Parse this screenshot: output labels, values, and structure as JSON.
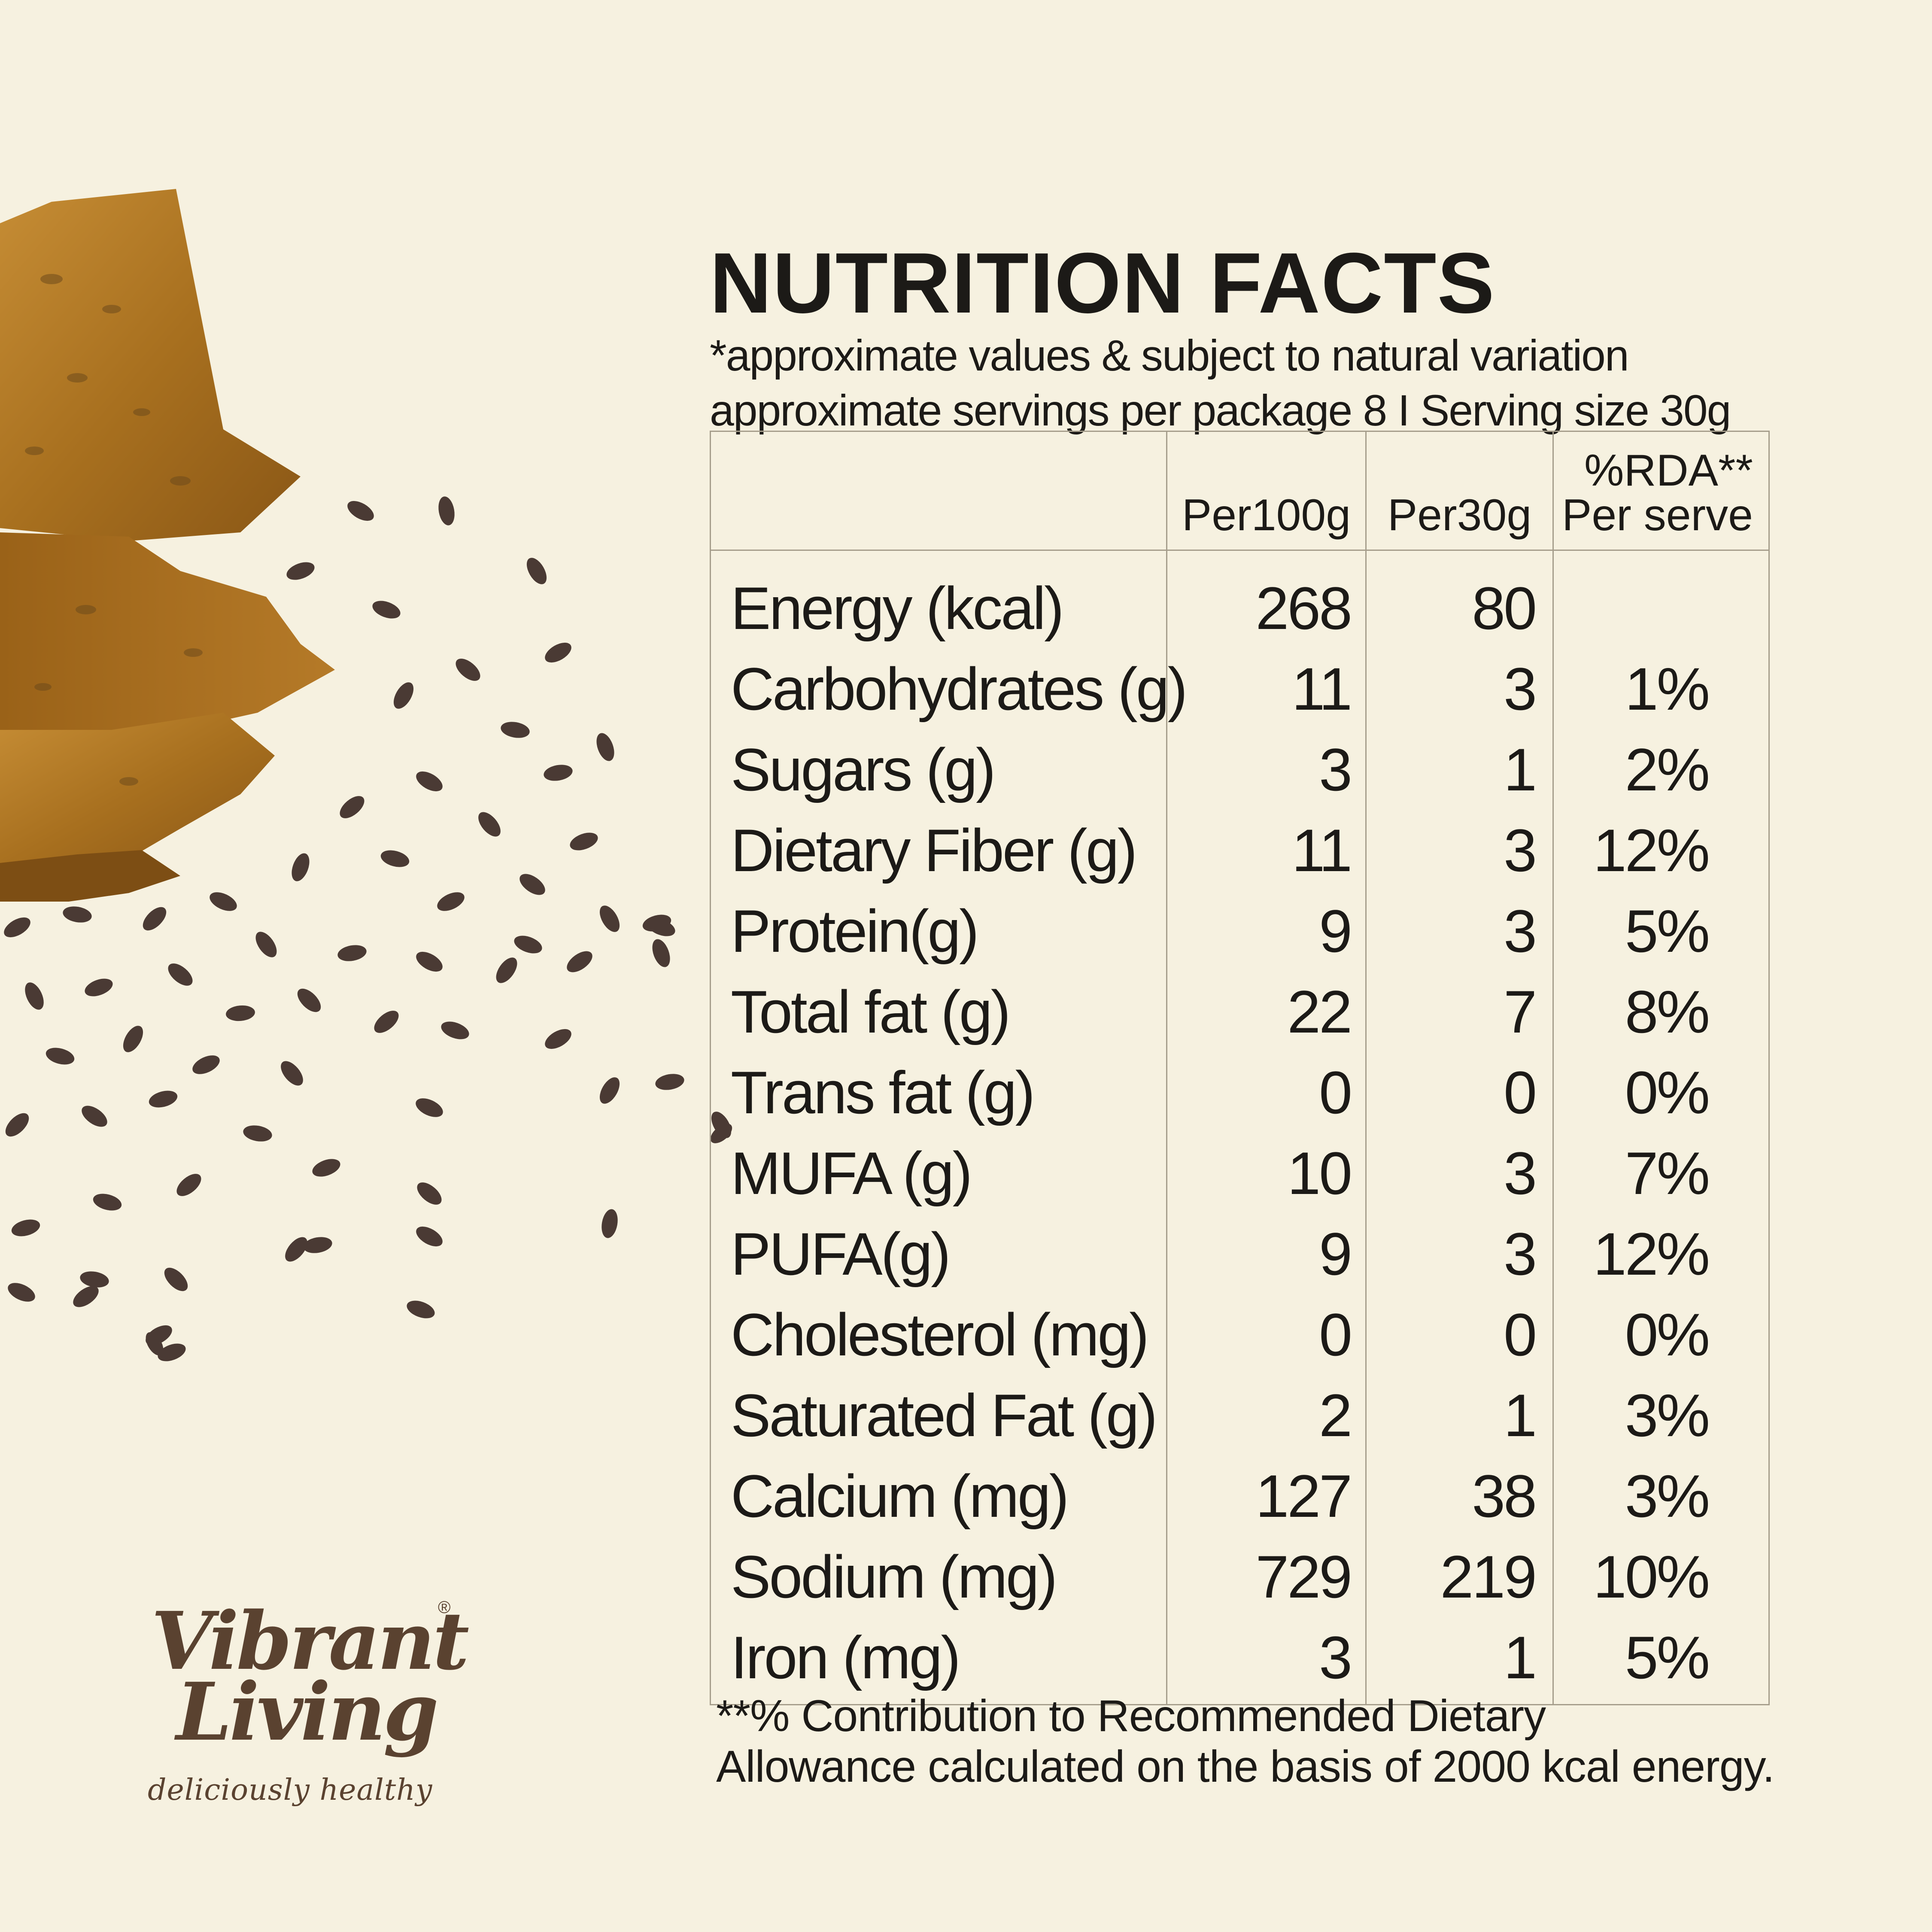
{
  "title": "NUTRITION FACTS",
  "subtitle_1": "*approximate values & subject to natural variation",
  "subtitle_2": "approximate servings per package 8 I Serving size 30g",
  "columns": {
    "per100g": "Per100g",
    "per30g": "Per30g",
    "rda_line1": "%RDA**",
    "rda_line2": "Per serve"
  },
  "rows": [
    {
      "label": "Energy (kcal)",
      "per100g": "268",
      "per30g": "80",
      "rda": ""
    },
    {
      "label": "Carbohydrates (g)",
      "per100g": "11",
      "per30g": "3",
      "rda": "1%"
    },
    {
      "label": "Sugars (g)",
      "per100g": "3",
      "per30g": "1",
      "rda": "2%"
    },
    {
      "label": "Dietary Fiber (g)",
      "per100g": "11",
      "per30g": "3",
      "rda": "12%"
    },
    {
      "label": "Protein(g)",
      "per100g": "9",
      "per30g": "3",
      "rda": "5%"
    },
    {
      "label": "Total fat (g)",
      "per100g": "22",
      "per30g": "7",
      "rda": "8%"
    },
    {
      "label": "Trans fat (g)",
      "per100g": "0",
      "per30g": "0",
      "rda": "0%"
    },
    {
      "label": "MUFA (g)",
      "per100g": "10",
      "per30g": "3",
      "rda": "7%"
    },
    {
      "label": "PUFA(g)",
      "per100g": "9",
      "per30g": "3",
      "rda": "12%"
    },
    {
      "label": "Cholesterol (mg)",
      "per100g": "0",
      "per30g": "0",
      "rda": "0%"
    },
    {
      "label": "Saturated Fat (g)",
      "per100g": "2",
      "per30g": "1",
      "rda": "3%"
    },
    {
      "label": "Calcium (mg)",
      "per100g": "127",
      "per30g": "38",
      "rda": "3%"
    },
    {
      "label": "Sodium (mg)",
      "per100g": "729",
      "per30g": "219",
      "rda": "10%"
    },
    {
      "label": "Iron (mg)",
      "per100g": "3",
      "per30g": "1",
      "rda": "5%"
    }
  ],
  "footnote_1": "**% Contribution to Recommended Dietary",
  "footnote_2": "Allowance calculated on the basis of 2000 kcal energy.",
  "logo": {
    "line1": "Vibrant",
    "line2": "Living",
    "registered": "®",
    "tagline": "deliciously healthy"
  },
  "colors": {
    "background": "#f6f1e0",
    "text": "#1c1a17",
    "table_lines": "#a69e8c",
    "logo_brown": "#5a4230",
    "cracker": "#b27a2a",
    "seed": "#4a3a34"
  }
}
